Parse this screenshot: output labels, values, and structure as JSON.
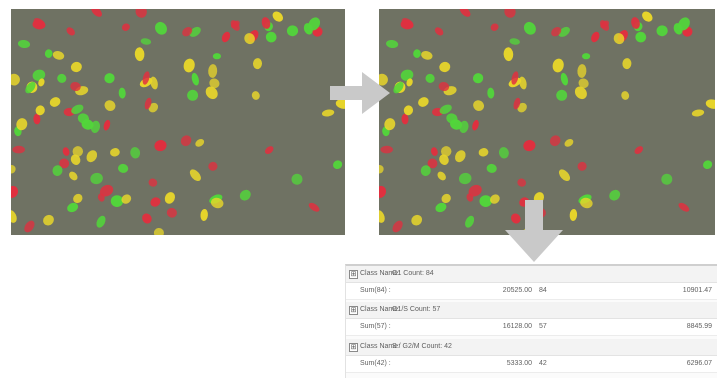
{
  "results": {
    "groups": [
      {
        "header_label": "Class Name:",
        "header_name": "G1 Count: 84",
        "sum_label": "Sum(84) :",
        "sum_value": "20525.00",
        "count": "84",
        "total": "10901.47"
      },
      {
        "header_label": "Class Name:",
        "header_name": "G1/S Count: 57",
        "sum_label": "Sum(57) :",
        "sum_value": "16128.00",
        "count": "57",
        "total": "8845.99"
      },
      {
        "header_label": "Class Name:",
        "header_name": "S / G2/M Count: 42",
        "sum_label": "Sum(42) :",
        "sum_value": "5333.00",
        "count": "42",
        "total": "6296.07"
      }
    ],
    "expander_symbol": "⊞"
  },
  "colors": {
    "background": "#6f7263",
    "red": "#e0303f",
    "yellow": "#e8d62a",
    "green": "#52d63a",
    "arrow": "#c9c9c9"
  }
}
